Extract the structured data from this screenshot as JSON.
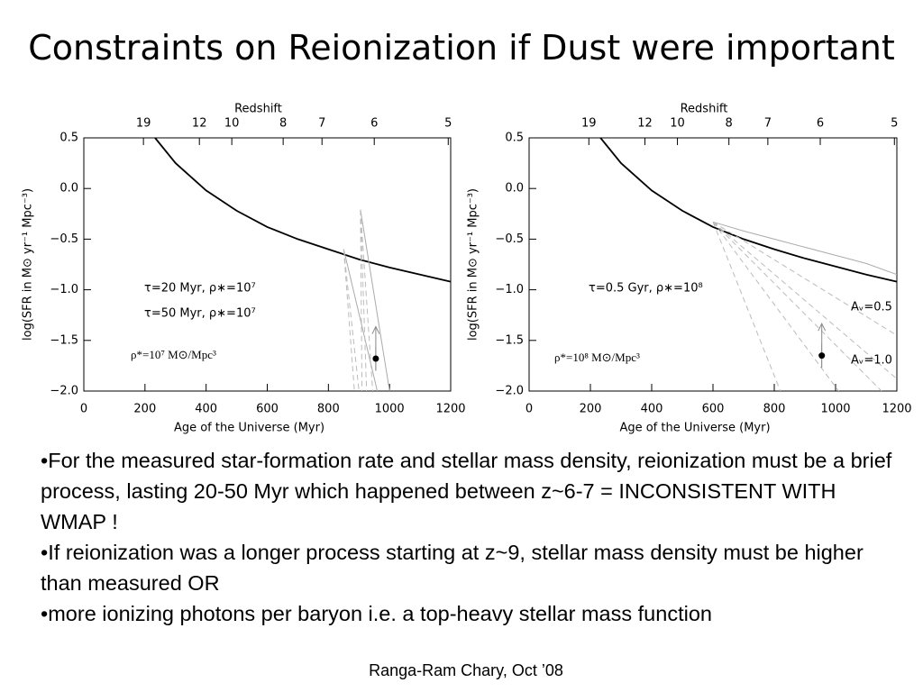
{
  "title": "Constraints on Reionization if Dust were important",
  "chart_data": [
    {
      "type": "line",
      "x2label": "Redshift",
      "xlabel": "Age of the Universe (Myr)",
      "ylabel": "log(SFR in M⊙ yr⁻¹ Mpc⁻³)",
      "xlim": [
        0,
        1200
      ],
      "ylim": [
        -2.0,
        0.5
      ],
      "xticks": [
        0,
        200,
        400,
        600,
        800,
        1000,
        1200
      ],
      "yticks": [
        {
          "value": -2.0,
          "label": "−2.0"
        },
        {
          "value": -1.5,
          "label": "−1.5"
        },
        {
          "value": -1.0,
          "label": "−1.0"
        },
        {
          "value": -0.5,
          "label": "−0.5"
        },
        {
          "value": 0.0,
          "label": "0.0"
        },
        0.5
      ],
      "x2ticks": [
        {
          "value": 195,
          "label": "19"
        },
        {
          "value": 378,
          "label": "12"
        },
        {
          "value": 484,
          "label": "10"
        },
        {
          "value": 652,
          "label": "8"
        },
        {
          "value": 779,
          "label": "7"
        },
        {
          "value": 950,
          "label": "6"
        },
        {
          "value": 1192,
          "label": "5"
        }
      ],
      "series": [
        {
          "color": "#000000",
          "x": [
            233,
            300,
            400,
            500,
            600,
            700,
            800,
            900,
            1000,
            1100,
            1200
          ],
          "values": [
            0.5,
            0.25,
            -0.02,
            -0.22,
            -0.38,
            -0.5,
            -0.6,
            -0.7,
            -0.78,
            -0.85,
            -0.92
          ]
        },
        {
          "color": "#aaaaaa",
          "x": [
            850,
            960
          ],
          "values": [
            -0.6,
            -2.0
          ]
        },
        {
          "color": "#aaaaaa",
          "x": [
            905,
            1000
          ],
          "values": [
            -0.21,
            -2.0
          ]
        },
        {
          "color": "#bbbbbb",
          "dash": true,
          "x": [
            905,
            910
          ],
          "values": [
            -0.21,
            -2.0
          ]
        },
        {
          "color": "#bbbbbb",
          "dash": true,
          "x": [
            905,
            925
          ],
          "values": [
            -0.21,
            -2.0
          ]
        },
        {
          "color": "#bbbbbb",
          "dash": true,
          "x": [
            905,
            945
          ],
          "values": [
            -0.21,
            -2.0
          ]
        },
        {
          "color": "#bbbbbb",
          "dash": true,
          "x": [
            850,
            885
          ],
          "values": [
            -0.6,
            -2.0
          ]
        },
        {
          "color": "#bbbbbb",
          "dash": true,
          "x": [
            850,
            900
          ],
          "values": [
            -0.6,
            -2.0
          ]
        }
      ],
      "points": [
        {
          "x": 955,
          "y": -1.68,
          "error": 0.12
        }
      ],
      "annotations": [
        "τ=20 Myr, ρ∗=10⁷",
        "τ=50 Myr, ρ∗=10⁷",
        "ρ*=10⁷ M⊙/Mpc³"
      ]
    },
    {
      "type": "line",
      "x2label": "Redshift",
      "xlabel": "Age of the Universe (Myr)",
      "ylabel": "log(SFR in M⊙ yr⁻¹ Mpc⁻³)",
      "xlim": [
        0,
        1200
      ],
      "ylim": [
        -2.0,
        0.5
      ],
      "xticks": [
        0,
        200,
        400,
        600,
        800,
        1000,
        1200
      ],
      "yticks": [
        {
          "value": -2.0,
          "label": "−2.0"
        },
        {
          "value": -1.5,
          "label": "−1.5"
        },
        {
          "value": -1.0,
          "label": "−1.0"
        },
        {
          "value": -0.5,
          "label": "−0.5"
        },
        {
          "value": 0.0,
          "label": "0.0"
        },
        0.5
      ],
      "x2ticks": [
        {
          "value": 195,
          "label": "19"
        },
        {
          "value": 378,
          "label": "12"
        },
        {
          "value": 484,
          "label": "10"
        },
        {
          "value": 652,
          "label": "8"
        },
        {
          "value": 779,
          "label": "7"
        },
        {
          "value": 950,
          "label": "6"
        },
        {
          "value": 1192,
          "label": "5"
        }
      ],
      "series": [
        {
          "color": "#000000",
          "x": [
            233,
            300,
            400,
            500,
            600,
            700,
            800,
            900,
            1000,
            1100,
            1200
          ],
          "values": [
            0.5,
            0.25,
            -0.02,
            -0.22,
            -0.38,
            -0.5,
            -0.6,
            -0.69,
            -0.77,
            -0.85,
            -0.92
          ]
        },
        {
          "color": "#aaaaaa",
          "x": [
            600,
            700,
            800,
            900,
            1000,
            1100,
            1200
          ],
          "values": [
            -0.33,
            -0.42,
            -0.5,
            -0.58,
            -0.66,
            -0.74,
            -0.85
          ]
        },
        {
          "color": "#bbbbbb",
          "dash": true,
          "x": [
            600,
            1200
          ],
          "values": [
            -0.33,
            -1.45
          ]
        },
        {
          "color": "#bbbbbb",
          "dash": true,
          "x": [
            600,
            1200
          ],
          "values": [
            -0.33,
            -1.88
          ]
        },
        {
          "color": "#bbbbbb",
          "dash": true,
          "x": [
            600,
            1150
          ],
          "values": [
            -0.33,
            -2.0
          ]
        },
        {
          "color": "#bbbbbb",
          "dash": true,
          "x": [
            600,
            1010
          ],
          "values": [
            -0.33,
            -2.0
          ]
        },
        {
          "color": "#bbbbbb",
          "dash": true,
          "x": [
            600,
            820
          ],
          "values": [
            -0.33,
            -2.0
          ]
        }
      ],
      "points": [
        {
          "x": 955,
          "y": -1.65,
          "error": 0.12
        }
      ],
      "annotations": [
        "τ=0.5 Gyr, ρ∗=10⁸",
        "Aᵥ=0.5",
        "Aᵥ=1.0",
        "ρ*=10⁸ M⊙/Mpc³"
      ]
    }
  ],
  "bullets": [
    "For the measured star-formation rate and stellar mass density, reionization must be a brief process, lasting 20-50 Myr which happened between z~6-7 = INCONSISTENT WITH WMAP !",
    "If reionization was a longer process starting at z~9, stellar mass density must be higher than measured OR",
    "more ionizing photons per baryon i.e. a top-heavy stellar mass function"
  ],
  "footer": "Ranga-Ram Chary, Oct ’08"
}
